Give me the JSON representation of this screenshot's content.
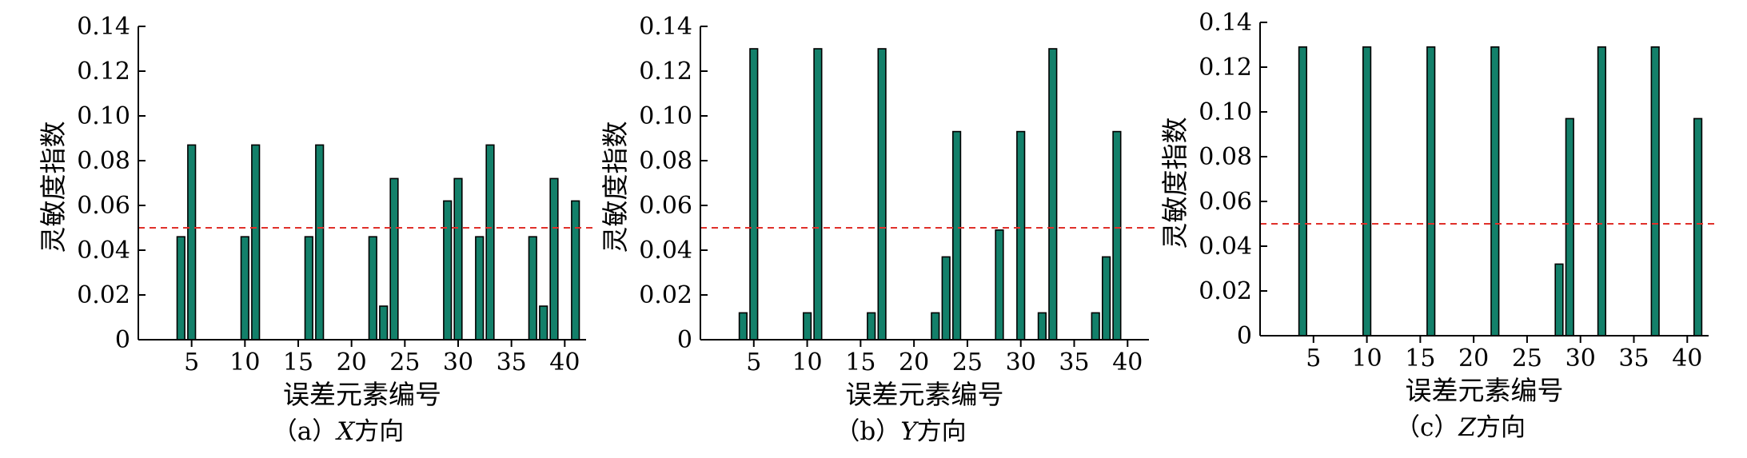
{
  "chart_data": [
    {
      "type": "bar",
      "caption_prefix": "（a）",
      "caption_axis": "X",
      "caption_suffix": "方向",
      "xlabel": "误差元素编号",
      "ylabel": "灵敏度指数",
      "xlim": [
        0,
        42
      ],
      "ylim": [
        0,
        0.14
      ],
      "xticks": [
        5,
        10,
        15,
        20,
        25,
        30,
        35,
        40
      ],
      "yticks": [
        0,
        0.02,
        0.04,
        0.06,
        0.08,
        0.1,
        0.12,
        0.14
      ],
      "ytick_labels": [
        "0",
        "0.02",
        "0.04",
        "0.06",
        "0.08",
        "0.10",
        "0.12",
        "0.14"
      ],
      "threshold": 0.05,
      "bar_color": "#13806a",
      "threshold_color": "#e0302a",
      "x": [
        4,
        5,
        10,
        11,
        16,
        17,
        22,
        23,
        24,
        29,
        30,
        32,
        33,
        37,
        38,
        39,
        41
      ],
      "values": [
        0.046,
        0.087,
        0.046,
        0.087,
        0.046,
        0.087,
        0.046,
        0.015,
        0.072,
        0.062,
        0.072,
        0.046,
        0.087,
        0.046,
        0.015,
        0.072,
        0.062
      ]
    },
    {
      "type": "bar",
      "caption_prefix": "（b）",
      "caption_axis": "Y",
      "caption_suffix": "方向",
      "xlabel": "误差元素编号",
      "ylabel": "灵敏度指数",
      "xlim": [
        0,
        42
      ],
      "ylim": [
        0,
        0.14
      ],
      "xticks": [
        5,
        10,
        15,
        20,
        25,
        30,
        35,
        40
      ],
      "yticks": [
        0,
        0.02,
        0.04,
        0.06,
        0.08,
        0.1,
        0.12,
        0.14
      ],
      "ytick_labels": [
        "0",
        "0.02",
        "0.04",
        "0.06",
        "0.08",
        "0.10",
        "0.12",
        "0.14"
      ],
      "threshold": 0.05,
      "bar_color": "#13806a",
      "threshold_color": "#e0302a",
      "x": [
        4,
        5,
        10,
        11,
        16,
        17,
        22,
        23,
        24,
        28,
        30,
        32,
        33,
        37,
        38,
        39
      ],
      "values": [
        0.012,
        0.13,
        0.012,
        0.13,
        0.012,
        0.13,
        0.012,
        0.037,
        0.093,
        0.049,
        0.093,
        0.012,
        0.13,
        0.012,
        0.037,
        0.093
      ]
    },
    {
      "type": "bar",
      "caption_prefix": "（c）",
      "caption_axis": "Z",
      "caption_suffix": "方向",
      "xlabel": "误差元素编号",
      "ylabel": "灵敏度指数",
      "xlim": [
        0,
        42
      ],
      "ylim": [
        0,
        0.14
      ],
      "xticks": [
        5,
        10,
        15,
        20,
        25,
        30,
        35,
        40
      ],
      "yticks": [
        0,
        0.02,
        0.04,
        0.06,
        0.08,
        0.1,
        0.12,
        0.14
      ],
      "ytick_labels": [
        "0",
        "0.02",
        "0.04",
        "0.06",
        "0.08",
        "0.10",
        "0.12",
        "0.14"
      ],
      "threshold": 0.05,
      "bar_color": "#13806a",
      "threshold_color": "#e0302a",
      "x": [
        4,
        10,
        16,
        22,
        28,
        29,
        32,
        37,
        41
      ],
      "values": [
        0.129,
        0.129,
        0.129,
        0.129,
        0.032,
        0.097,
        0.129,
        0.129,
        0.097
      ]
    }
  ]
}
